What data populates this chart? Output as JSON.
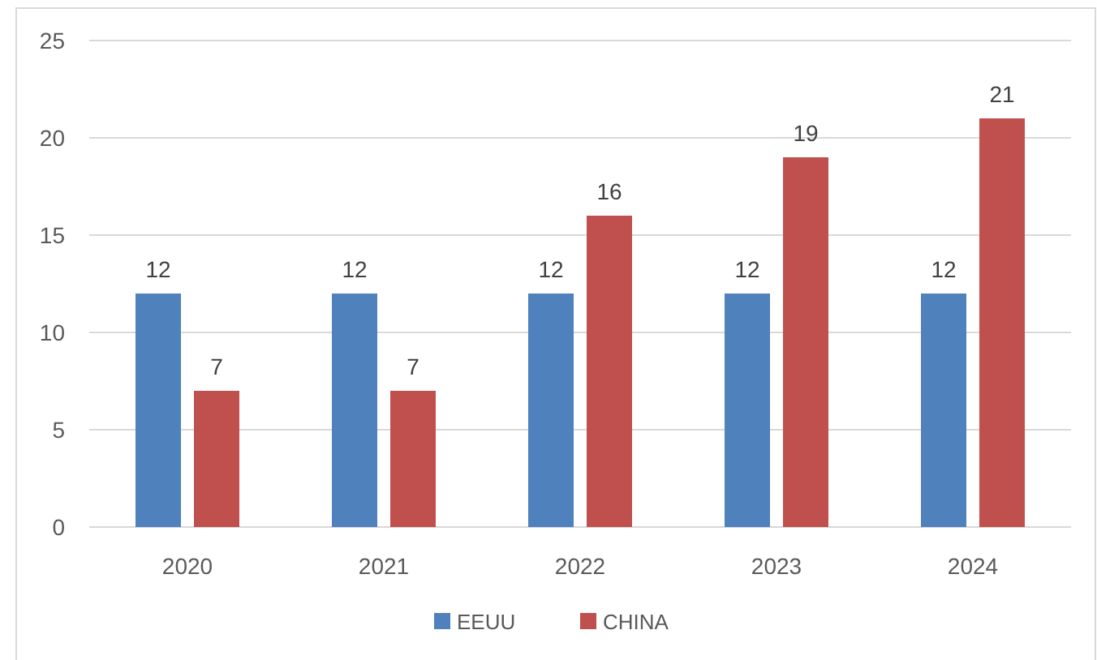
{
  "chart_data": {
    "type": "bar",
    "categories": [
      "2020",
      "2021",
      "2022",
      "2023",
      "2024"
    ],
    "series": [
      {
        "name": "EEUU",
        "color": "#4f81bd",
        "values": [
          12,
          12,
          12,
          12,
          12
        ]
      },
      {
        "name": "CHINA",
        "color": "#c0504d",
        "values": [
          7,
          7,
          16,
          19,
          21
        ]
      }
    ],
    "ylim": [
      0,
      25
    ],
    "yticks": [
      0,
      5,
      10,
      15,
      20,
      25
    ],
    "grid": "y",
    "data_labels": true,
    "legend": "bottom"
  }
}
